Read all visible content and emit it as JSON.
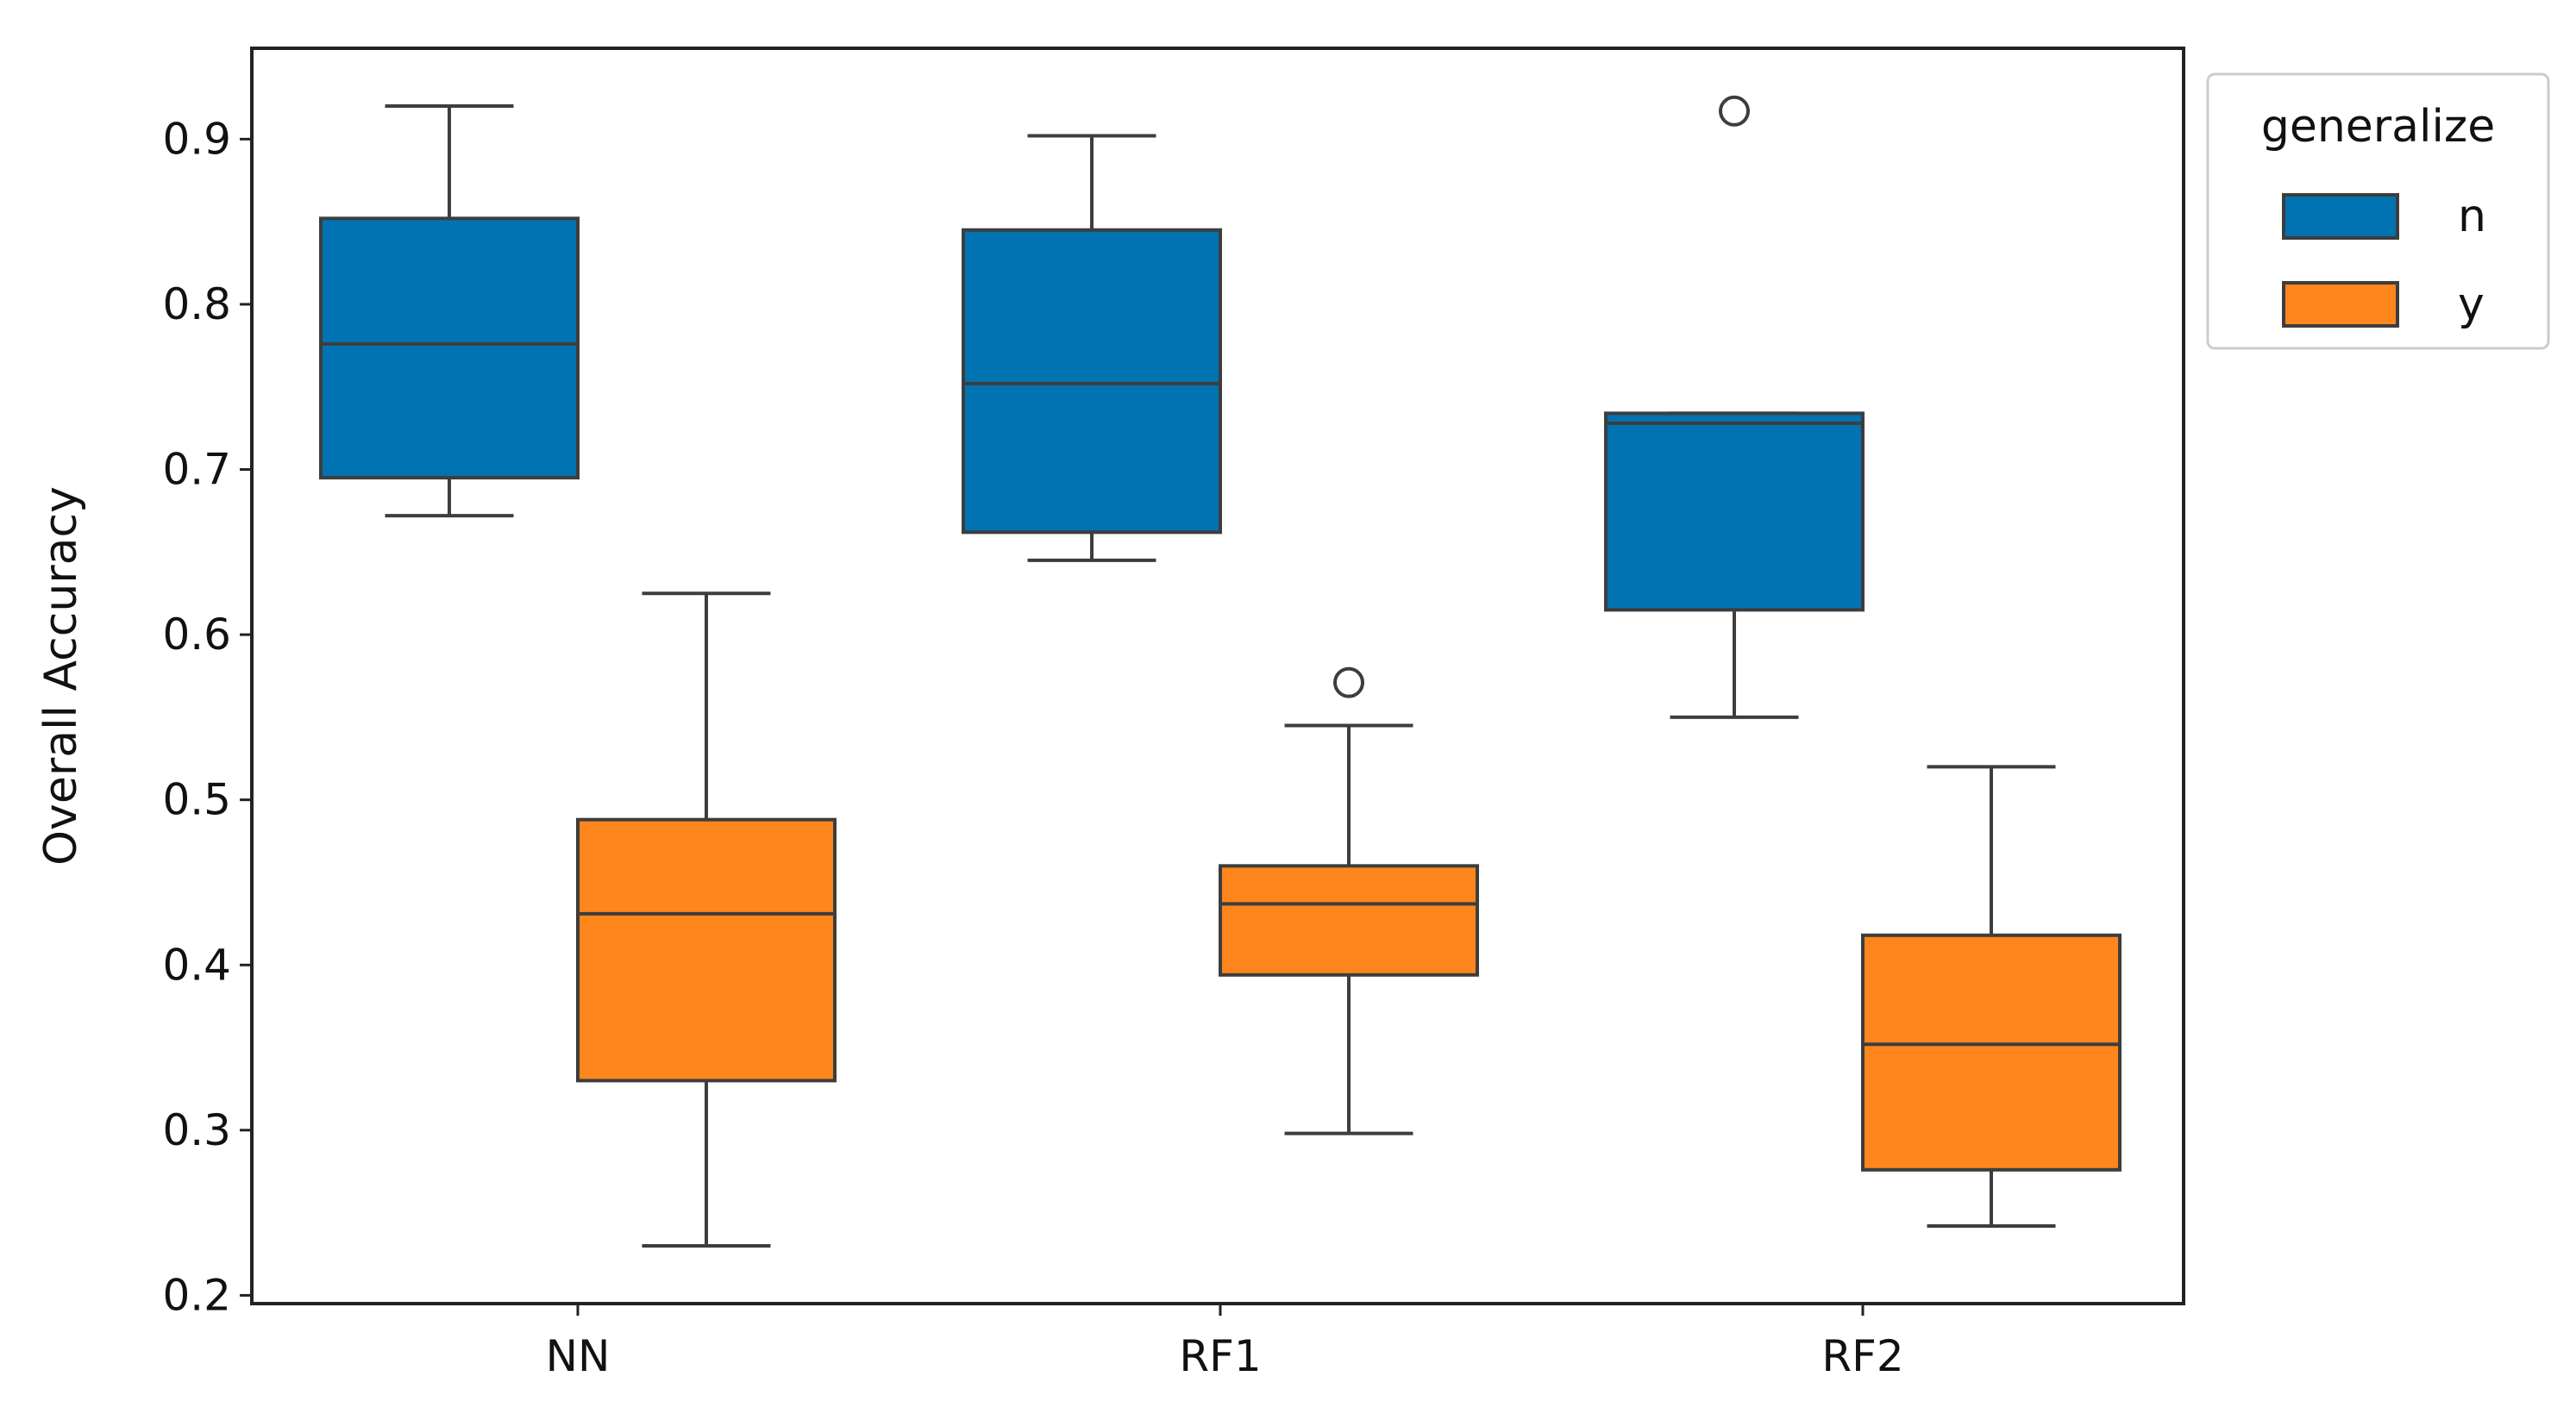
{
  "chart_data": {
    "type": "boxplot",
    "title": "",
    "xlabel": "",
    "ylabel": "Overall Accuracy",
    "ylim": [
      0.195,
      0.955
    ],
    "yticks": [
      "0.2",
      "0.3",
      "0.4",
      "0.5",
      "0.6",
      "0.7",
      "0.8",
      "0.9"
    ],
    "categories": [
      "NN",
      "RF1",
      "RF2"
    ],
    "legend": {
      "title": "generalize",
      "position": "outside-top-right",
      "entries": [
        {
          "label": "n",
          "color": "#0173b2"
        },
        {
          "label": "y",
          "color": "#fe861d"
        }
      ]
    },
    "series": [
      {
        "name": "n",
        "color": "#0173b2",
        "boxes": [
          {
            "category": "NN",
            "whisker_low": 0.672,
            "q1": 0.695,
            "median": 0.776,
            "q3": 0.852,
            "whisker_high": 0.92,
            "outliers": []
          },
          {
            "category": "RF1",
            "whisker_low": 0.645,
            "q1": 0.662,
            "median": 0.752,
            "q3": 0.845,
            "whisker_high": 0.902,
            "outliers": []
          },
          {
            "category": "RF2",
            "whisker_low": 0.55,
            "q1": 0.615,
            "median": 0.728,
            "q3": 0.734,
            "whisker_high": 0.734,
            "outliers": [
              0.917
            ]
          }
        ]
      },
      {
        "name": "y",
        "color": "#fe861d",
        "boxes": [
          {
            "category": "NN",
            "whisker_low": 0.23,
            "q1": 0.33,
            "median": 0.431,
            "q3": 0.488,
            "whisker_high": 0.625,
            "outliers": []
          },
          {
            "category": "RF1",
            "whisker_low": 0.298,
            "q1": 0.394,
            "median": 0.437,
            "q3": 0.46,
            "whisker_high": 0.545,
            "outliers": [
              0.571
            ]
          },
          {
            "category": "RF2",
            "whisker_low": 0.242,
            "q1": 0.276,
            "median": 0.352,
            "q3": 0.418,
            "whisker_high": 0.52,
            "outliers": []
          }
        ]
      }
    ]
  }
}
